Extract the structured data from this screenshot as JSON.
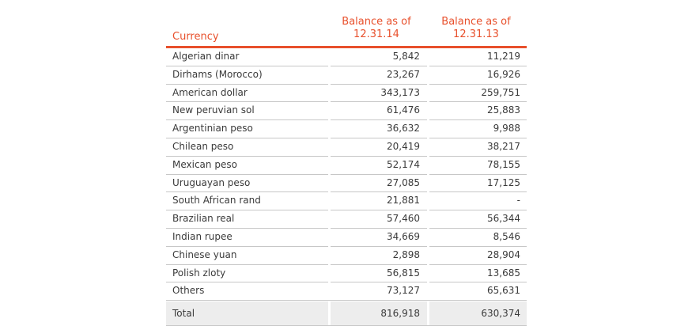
{
  "table": {
    "headers": {
      "currency": "Currency",
      "col1_line1": "Balance as of",
      "col1_line2": "12.31.14",
      "col2_line1": "Balance as of",
      "col2_line2": "12.31.13"
    },
    "rows": [
      {
        "currency": "Algerian dinar",
        "v2014": "5,842",
        "v2013": "11,219"
      },
      {
        "currency": "Dirhams (Morocco)",
        "v2014": "23,267",
        "v2013": "16,926"
      },
      {
        "currency": "American dollar",
        "v2014": "343,173",
        "v2013": "259,751"
      },
      {
        "currency": "New peruvian sol",
        "v2014": "61,476",
        "v2013": "25,883"
      },
      {
        "currency": "Argentinian peso",
        "v2014": "36,632",
        "v2013": "9,988"
      },
      {
        "currency": "Chilean peso",
        "v2014": "20,419",
        "v2013": "38,217"
      },
      {
        "currency": "Mexican peso",
        "v2014": "52,174",
        "v2013": "78,155"
      },
      {
        "currency": "Uruguayan peso",
        "v2014": "27,085",
        "v2013": "17,125"
      },
      {
        "currency": "South African rand",
        "v2014": "21,881",
        "v2013": "-"
      },
      {
        "currency": "Brazilian real",
        "v2014": "57,460",
        "v2013": "56,344"
      },
      {
        "currency": "Indian rupee",
        "v2014": "34,669",
        "v2013": "8,546"
      },
      {
        "currency": "Chinese yuan",
        "v2014": "2,898",
        "v2013": "28,904"
      },
      {
        "currency": "Polish zloty",
        "v2014": "56,815",
        "v2013": "13,685"
      },
      {
        "currency": "Others",
        "v2014": "73,127",
        "v2013": "65,631"
      }
    ],
    "total": {
      "label": "Total",
      "v2014": "816,918",
      "v2013": "630,374"
    }
  },
  "colors": {
    "accent": "#e8502c",
    "text": "#3a3a3a",
    "rule": "#c7c7c7",
    "total_bg": "#ededed"
  }
}
